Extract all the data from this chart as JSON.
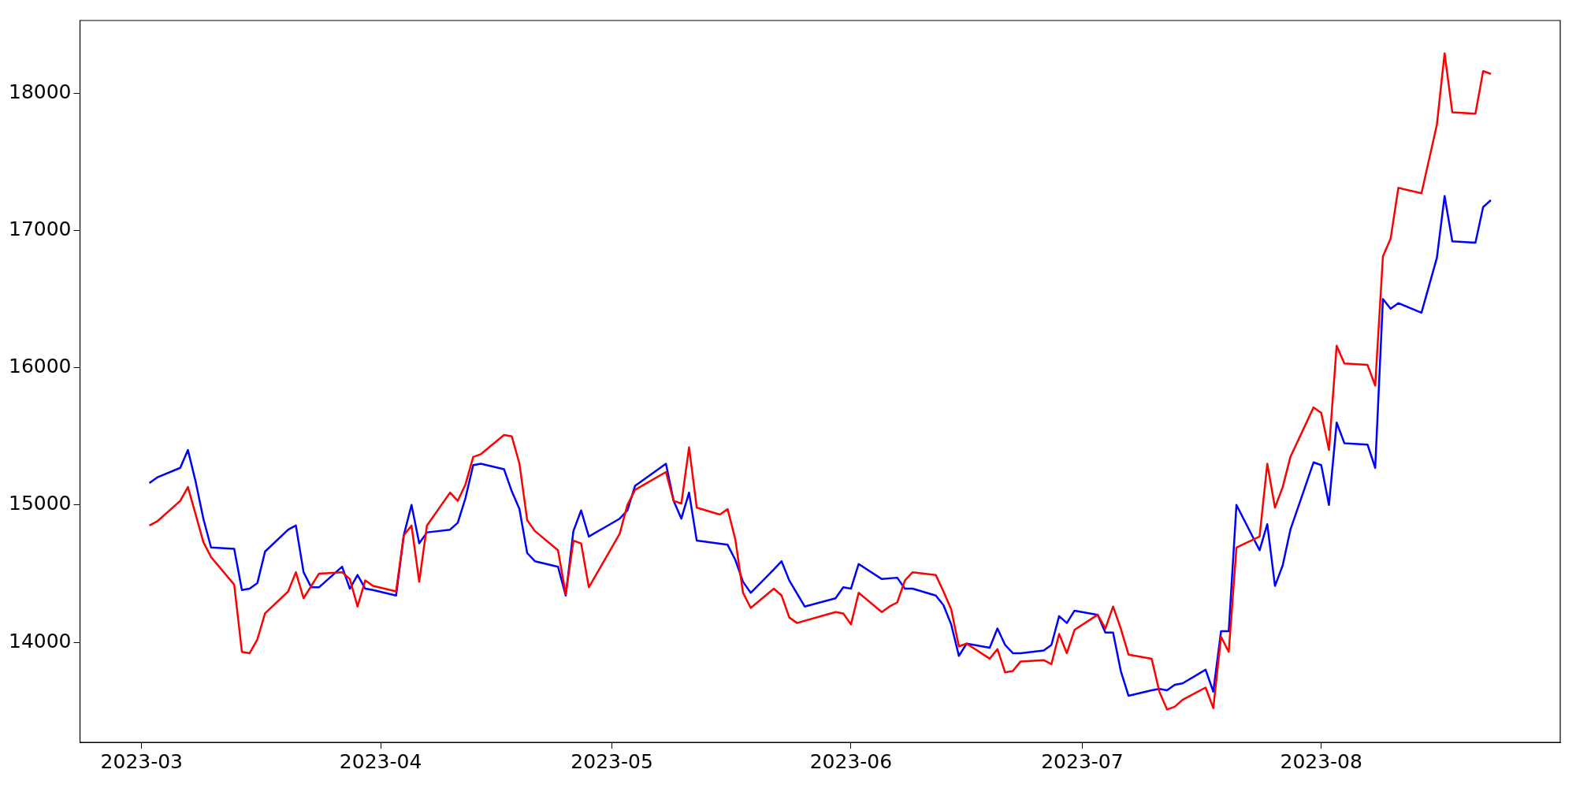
{
  "chart_data": {
    "type": "line",
    "xlim": [
      "2023-02-21",
      "2023-09-01"
    ],
    "xticks": [
      "2023-03",
      "2023-04",
      "2023-05",
      "2023-06",
      "2023-07",
      "2023-08"
    ],
    "ylim": [
      13271,
      18529
    ],
    "yticks": [
      14000,
      15000,
      16000,
      17000,
      18000
    ],
    "grid": false,
    "legend": false,
    "marker": "none",
    "line_style": "solid",
    "series": [
      {
        "color": "#ff0000",
        "x": [
          "2023-03-02",
          "2023-03-03",
          "2023-03-06",
          "2023-03-07",
          "2023-03-09",
          "2023-03-10",
          "2023-03-13",
          "2023-03-14",
          "2023-03-15",
          "2023-03-16",
          "2023-03-17",
          "2023-03-20",
          "2023-03-21",
          "2023-03-22",
          "2023-03-24",
          "2023-03-27",
          "2023-03-28",
          "2023-03-29",
          "2023-03-30",
          "2023-03-31",
          "2023-04-03",
          "2023-04-04",
          "2023-04-05",
          "2023-04-06",
          "2023-04-07",
          "2023-04-10",
          "2023-04-11",
          "2023-04-12",
          "2023-04-13",
          "2023-04-14",
          "2023-04-17",
          "2023-04-18",
          "2023-04-19",
          "2023-04-20",
          "2023-04-21",
          "2023-04-24",
          "2023-04-25",
          "2023-04-26",
          "2023-04-27",
          "2023-04-28",
          "2023-05-02",
          "2023-05-03",
          "2023-05-04",
          "2023-05-08",
          "2023-05-09",
          "2023-05-10",
          "2023-05-11",
          "2023-05-12",
          "2023-05-15",
          "2023-05-16",
          "2023-05-17",
          "2023-05-18",
          "2023-05-19",
          "2023-05-22",
          "2023-05-23",
          "2023-05-24",
          "2023-05-25",
          "2023-05-30",
          "2023-05-31",
          "2023-06-01",
          "2023-06-02",
          "2023-06-05",
          "2023-06-06",
          "2023-06-07",
          "2023-06-08",
          "2023-06-09",
          "2023-06-12",
          "2023-06-13",
          "2023-06-14",
          "2023-06-15",
          "2023-06-16",
          "2023-06-19",
          "2023-06-20",
          "2023-06-21",
          "2023-06-22",
          "2023-06-23",
          "2023-06-26",
          "2023-06-27",
          "2023-06-28",
          "2023-06-29",
          "2023-06-30",
          "2023-07-03",
          "2023-07-04",
          "2023-07-05",
          "2023-07-06",
          "2023-07-07",
          "2023-07-10",
          "2023-07-11",
          "2023-07-12",
          "2023-07-13",
          "2023-07-14",
          "2023-07-17",
          "2023-07-18",
          "2023-07-19",
          "2023-07-20",
          "2023-07-21",
          "2023-07-24",
          "2023-07-25",
          "2023-07-26",
          "2023-07-27",
          "2023-07-28",
          "2023-07-31",
          "2023-08-01",
          "2023-08-02",
          "2023-08-03",
          "2023-08-04",
          "2023-08-07",
          "2023-08-08",
          "2023-08-09",
          "2023-08-10",
          "2023-08-11",
          "2023-08-14",
          "2023-08-16",
          "2023-08-17",
          "2023-08-18",
          "2023-08-21",
          "2023-08-22",
          "2023-08-23"
        ],
        "values": [
          14850,
          14880,
          15030,
          15130,
          14730,
          14620,
          14420,
          13930,
          13920,
          14020,
          14210,
          14370,
          14510,
          14320,
          14500,
          14510,
          14460,
          14260,
          14450,
          14410,
          14370,
          14780,
          14850,
          14440,
          14850,
          15090,
          15030,
          15150,
          15350,
          15370,
          15510,
          15500,
          15300,
          14890,
          14810,
          14670,
          14350,
          14740,
          14720,
          14400,
          14790,
          15000,
          15110,
          15240,
          15030,
          15010,
          15420,
          14980,
          14930,
          14970,
          14750,
          14360,
          14250,
          14390,
          14340,
          14180,
          14140,
          14220,
          14210,
          14130,
          14360,
          14220,
          14260,
          14290,
          14450,
          14510,
          14490,
          14370,
          14240,
          13970,
          13990,
          13880,
          13950,
          13780,
          13790,
          13860,
          13870,
          13840,
          14060,
          13920,
          14090,
          14200,
          14100,
          14260,
          14100,
          13910,
          13880,
          13640,
          13510,
          13530,
          13580,
          13670,
          13520,
          14040,
          13930,
          14690,
          14770,
          15300,
          14980,
          15130,
          15350,
          15710,
          15670,
          15400,
          16160,
          16030,
          16020,
          15870,
          16810,
          16940,
          17310,
          17270,
          17770,
          18290,
          17860,
          17850,
          18160,
          18140
        ]
      },
      {
        "color": "#0000ff",
        "x": [
          "2023-03-02",
          "2023-03-03",
          "2023-03-06",
          "2023-03-07",
          "2023-03-08",
          "2023-03-09",
          "2023-03-10",
          "2023-03-13",
          "2023-03-14",
          "2023-03-15",
          "2023-03-16",
          "2023-03-17",
          "2023-03-20",
          "2023-03-21",
          "2023-03-22",
          "2023-03-23",
          "2023-03-24",
          "2023-03-27",
          "2023-03-28",
          "2023-03-29",
          "2023-03-30",
          "2023-03-31",
          "2023-04-03",
          "2023-04-04",
          "2023-04-05",
          "2023-04-06",
          "2023-04-07",
          "2023-04-10",
          "2023-04-11",
          "2023-04-12",
          "2023-04-13",
          "2023-04-14",
          "2023-04-17",
          "2023-04-18",
          "2023-04-19",
          "2023-04-20",
          "2023-04-21",
          "2023-04-24",
          "2023-04-25",
          "2023-04-26",
          "2023-04-27",
          "2023-04-28",
          "2023-05-02",
          "2023-05-03",
          "2023-05-04",
          "2023-05-08",
          "2023-05-09",
          "2023-05-10",
          "2023-05-11",
          "2023-05-12",
          "2023-05-16",
          "2023-05-17",
          "2023-05-18",
          "2023-05-19",
          "2023-05-22",
          "2023-05-23",
          "2023-05-24",
          "2023-05-26",
          "2023-05-30",
          "2023-05-31",
          "2023-06-01",
          "2023-06-02",
          "2023-06-05",
          "2023-06-07",
          "2023-06-08",
          "2023-06-09",
          "2023-06-12",
          "2023-06-13",
          "2023-06-14",
          "2023-06-15",
          "2023-06-16",
          "2023-06-19",
          "2023-06-20",
          "2023-06-21",
          "2023-06-22",
          "2023-06-23",
          "2023-06-26",
          "2023-06-27",
          "2023-06-28",
          "2023-06-29",
          "2023-06-30",
          "2023-07-03",
          "2023-07-04",
          "2023-07-05",
          "2023-07-06",
          "2023-07-07",
          "2023-07-10",
          "2023-07-11",
          "2023-07-12",
          "2023-07-13",
          "2023-07-14",
          "2023-07-17",
          "2023-07-18",
          "2023-07-19",
          "2023-07-20",
          "2023-07-21",
          "2023-07-24",
          "2023-07-25",
          "2023-07-26",
          "2023-07-27",
          "2023-07-28",
          "2023-07-31",
          "2023-08-01",
          "2023-08-02",
          "2023-08-03",
          "2023-08-04",
          "2023-08-07",
          "2023-08-08",
          "2023-08-09",
          "2023-08-10",
          "2023-08-11",
          "2023-08-14",
          "2023-08-16",
          "2023-08-17",
          "2023-08-18",
          "2023-08-21",
          "2023-08-22",
          "2023-08-23"
        ],
        "values": [
          15160,
          15200,
          15270,
          15400,
          15170,
          14900,
          14690,
          14680,
          14380,
          14390,
          14430,
          14660,
          14820,
          14850,
          14510,
          14400,
          14400,
          14550,
          14390,
          14490,
          14390,
          14380,
          14340,
          14780,
          15000,
          14720,
          14800,
          14820,
          14870,
          15050,
          15290,
          15300,
          15260,
          15100,
          14970,
          14650,
          14590,
          14550,
          14340,
          14810,
          14960,
          14770,
          14900,
          14960,
          15140,
          15300,
          15030,
          14900,
          15090,
          14740,
          14710,
          14600,
          14440,
          14360,
          14530,
          14590,
          14450,
          14260,
          14320,
          14400,
          14390,
          14570,
          14460,
          14470,
          14390,
          14390,
          14340,
          14270,
          14130,
          13900,
          13990,
          13960,
          14100,
          13980,
          13920,
          13920,
          13940,
          13980,
          14190,
          14140,
          14230,
          14200,
          14070,
          14070,
          13790,
          13610,
          13650,
          13660,
          13650,
          13690,
          13700,
          13800,
          13640,
          14080,
          14080,
          15000,
          14670,
          14860,
          14410,
          14560,
          14820,
          15310,
          15290,
          15000,
          15600,
          15450,
          15440,
          15270,
          16500,
          16430,
          16470,
          16400,
          16800,
          17250,
          16920,
          16910,
          17170,
          17220
        ]
      }
    ]
  }
}
